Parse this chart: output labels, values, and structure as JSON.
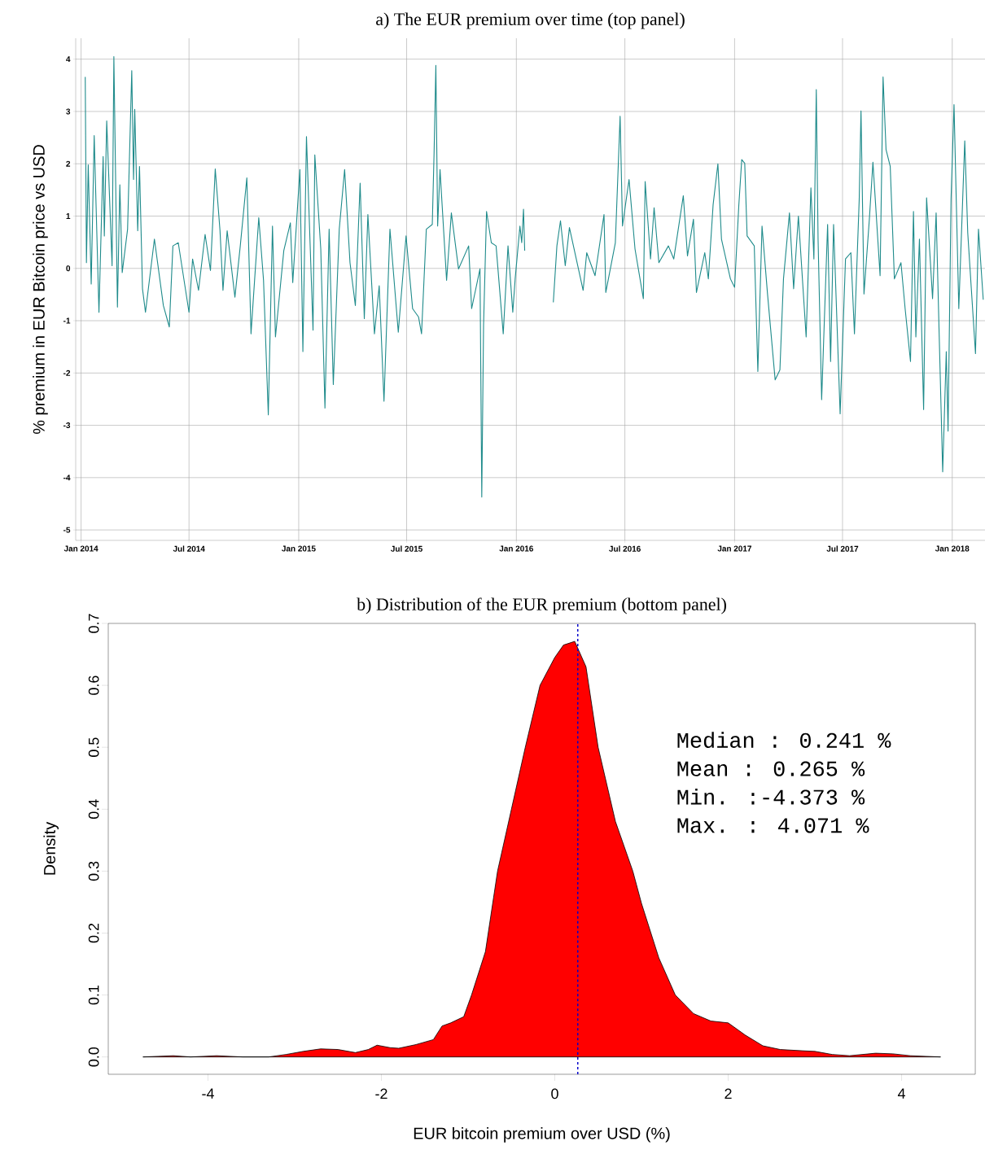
{
  "chart_data": [
    {
      "type": "line",
      "title": "a) The EUR premium over time (top panel)",
      "ylabel": "% premium in EUR Bitcoin price vs USD",
      "color": "#1f8b8b",
      "grid": true,
      "xlim": [
        "2013-12-23",
        "2018-02-25"
      ],
      "ylim": [
        -5.2,
        4.4
      ],
      "xticks": [
        {
          "value": "2014-01-01",
          "label": "Jan 2014"
        },
        {
          "value": "2014-07-01",
          "label": "Jul 2014"
        },
        {
          "value": "2015-01-01",
          "label": "Jan 2015"
        },
        {
          "value": "2015-07-01",
          "label": "Jul 2015"
        },
        {
          "value": "2016-01-01",
          "label": "Jan 2016"
        },
        {
          "value": "2016-07-01",
          "label": "Jul 2016"
        },
        {
          "value": "2017-01-01",
          "label": "Jan 2017"
        },
        {
          "value": "2017-07-01",
          "label": "Jul 2017"
        },
        {
          "value": "2018-01-01",
          "label": "Jan 2018"
        }
      ],
      "yticks": [
        -5,
        -4,
        -3,
        -2,
        -1,
        0,
        1,
        2,
        3,
        4
      ],
      "x": [
        "2014-01-08",
        "2014-01-10",
        "2014-01-13",
        "2014-01-18",
        "2014-01-23",
        "2014-01-31",
        "2014-02-07",
        "2014-02-09",
        "2014-02-13",
        "2014-02-22",
        "2014-02-25",
        "2014-03-03",
        "2014-03-07",
        "2014-03-11",
        "2014-03-20",
        "2014-03-27",
        "2014-03-30",
        "2014-04-01",
        "2014-04-06",
        "2014-04-09",
        "2014-04-14",
        "2014-04-19",
        "2014-05-04",
        "2014-05-19",
        "2014-05-29",
        "2014-06-04",
        "2014-06-13",
        "2014-07-01",
        "2014-07-07",
        "2014-07-17",
        "2014-07-28",
        "2014-08-06",
        "2014-08-14",
        "2014-08-22",
        "2014-08-27",
        "2014-09-03",
        "2014-09-16",
        "2014-09-25",
        "2014-10-06",
        "2014-10-13",
        "2014-10-26",
        "2014-11-03",
        "2014-11-11",
        "2014-11-18",
        "2014-11-23",
        "2014-12-07",
        "2014-12-18",
        "2014-12-22",
        "2015-01-03",
        "2015-01-08",
        "2015-01-14",
        "2015-01-25",
        "2015-01-28",
        "2015-02-07",
        "2015-02-14",
        "2015-02-21",
        "2015-02-28",
        "2015-03-10",
        "2015-03-19",
        "2015-03-28",
        "2015-04-06",
        "2015-04-14",
        "2015-04-21",
        "2015-04-27",
        "2015-05-08",
        "2015-05-16",
        "2015-05-24",
        "2015-06-03",
        "2015-06-17",
        "2015-06-30",
        "2015-07-11",
        "2015-07-21",
        "2015-07-26",
        "2015-08-03",
        "2015-08-13",
        "2015-08-16",
        "2015-08-19",
        "2015-08-22",
        "2015-08-26",
        "2015-09-06",
        "2015-09-14",
        "2015-09-26",
        "2015-10-13",
        "2015-10-18",
        "2015-11-01",
        "2015-11-04",
        "2015-11-07",
        "2015-11-12",
        "2015-11-20",
        "2015-11-28",
        "2015-12-10",
        "2015-12-18",
        "2015-12-26",
        "2015-12-30",
        "2016-01-07",
        "2016-01-10",
        "2016-01-13",
        "2016-01-15",
        "2016-02-05",
        "2016-03-03",
        "2016-03-09",
        "2016-03-15",
        "2016-03-23",
        "2016-03-30",
        "2016-04-22",
        "2016-04-28",
        "2016-05-12",
        "2016-05-27",
        "2016-05-30",
        "2016-06-15",
        "2016-06-23",
        "2016-06-27",
        "2016-07-08",
        "2016-07-18",
        "2016-08-01",
        "2016-08-04",
        "2016-08-13",
        "2016-08-19",
        "2016-08-27",
        "2016-09-12",
        "2016-09-21",
        "2016-10-07",
        "2016-10-14",
        "2016-10-24",
        "2016-10-29",
        "2016-11-12",
        "2016-11-18",
        "2016-11-26",
        "2016-12-04",
        "2016-12-10",
        "2016-12-25",
        "2017-01-01",
        "2017-01-08",
        "2017-01-13",
        "2017-01-18",
        "2017-01-22",
        "2017-02-03",
        "2017-02-09",
        "2017-02-16",
        "2017-02-25",
        "2017-03-10",
        "2017-03-18",
        "2017-03-24",
        "2017-04-03",
        "2017-04-10",
        "2017-04-18",
        "2017-05-01",
        "2017-05-09",
        "2017-05-14",
        "2017-05-18",
        "2017-05-21",
        "2017-05-27",
        "2017-06-06",
        "2017-06-11",
        "2017-06-16",
        "2017-06-27",
        "2017-07-06",
        "2017-07-15",
        "2017-07-21",
        "2017-07-29",
        "2017-08-01",
        "2017-08-06",
        "2017-08-15",
        "2017-08-21",
        "2017-09-02",
        "2017-09-07",
        "2017-09-12",
        "2017-09-19",
        "2017-09-26",
        "2017-10-07",
        "2017-10-14",
        "2017-10-23",
        "2017-10-28",
        "2017-11-01",
        "2017-11-07",
        "2017-11-14",
        "2017-11-19",
        "2017-11-29",
        "2017-12-05",
        "2017-12-10",
        "2017-12-16",
        "2017-12-22",
        "2017-12-25",
        "2017-12-30",
        "2018-01-04",
        "2018-01-12",
        "2018-01-22",
        "2018-01-27",
        "2018-02-02",
        "2018-02-09",
        "2018-02-14",
        "2018-02-22"
      ],
      "values": [
        3.66,
        0.11,
        1.98,
        -0.3,
        2.54,
        -0.84,
        2.14,
        0.62,
        2.82,
        0.05,
        4.05,
        -0.74,
        1.6,
        -0.08,
        0.75,
        3.78,
        1.7,
        3.04,
        0.72,
        1.95,
        -0.39,
        -0.84,
        0.56,
        -0.71,
        -1.12,
        0.43,
        0.49,
        -0.84,
        0.18,
        -0.42,
        0.65,
        -0.04,
        1.9,
        0.72,
        -0.42,
        0.72,
        -0.55,
        0.43,
        1.73,
        -1.25,
        0.97,
        -0.23,
        -2.8,
        0.81,
        -1.31,
        0.34,
        0.87,
        -0.27,
        1.89,
        -1.59,
        2.52,
        -1.18,
        2.17,
        0.37,
        -2.67,
        0.75,
        -2.22,
        0.75,
        1.89,
        0.11,
        -0.71,
        1.63,
        -0.96,
        1.03,
        -1.25,
        -0.33,
        -2.54,
        0.75,
        -1.22,
        0.62,
        -0.77,
        -0.93,
        -1.25,
        0.75,
        0.84,
        2.2,
        3.88,
        0.81,
        1.89,
        -0.23,
        1.06,
        -0.01,
        0.43,
        -0.77,
        -0.01,
        -4.37,
        -1.09,
        1.09,
        0.49,
        0.43,
        -1.25,
        0.43,
        -0.84,
        -0.2,
        0.81,
        0.49,
        1.13,
        0.34,
        null,
        -0.65,
        0.43,
        0.91,
        0.05,
        0.78,
        -0.42,
        0.3,
        -0.14,
        1.03,
        -0.46,
        0.49,
        2.91,
        0.81,
        1.7,
        0.37,
        -0.58,
        1.66,
        0.18,
        1.16,
        0.11,
        0.43,
        0.18,
        1.39,
        0.24,
        0.94,
        -0.46,
        0.3,
        -0.2,
        1.22,
        2.0,
        0.56,
        -0.2,
        -0.36,
        1.19,
        2.08,
        2.01,
        0.62,
        0.43,
        -1.97,
        0.81,
        -0.46,
        -2.13,
        -1.94,
        -0.2,
        1.06,
        -0.39,
        1.0,
        -1.31,
        1.54,
        0.18,
        3.42,
        0.56,
        -2.51,
        0.84,
        -1.78,
        0.84,
        -2.78,
        0.18,
        0.3,
        -1.25,
        1.32,
        3.01,
        -0.49,
        0.94,
        2.03,
        -0.14,
        3.66,
        2.27,
        1.95,
        -0.2,
        0.11,
        -0.77,
        -1.78,
        1.09,
        -1.31,
        0.56,
        -2.7,
        1.35,
        -0.58,
        1.06,
        -1.22,
        -3.89,
        -1.59,
        -3.11,
        1.32,
        3.13,
        -0.77,
        2.44,
        0.68,
        -0.39,
        -1.63,
        0.75,
        -0.6
      ]
    },
    {
      "type": "area",
      "title": "b) Distribution of the EUR premium (bottom panel)",
      "xlabel": "EUR bitcoin premium over USD (%)",
      "ylabel": "Density",
      "color": "#ff0000",
      "xlim": [
        -5.15,
        4.85
      ],
      "ylim": [
        -0.028,
        0.7
      ],
      "xticks": [
        -4,
        -2,
        0,
        2,
        4
      ],
      "yticks": [
        {
          "value": 0,
          "label": "0.0"
        },
        {
          "value": 0.1,
          "label": "0.1"
        },
        {
          "value": 0.2,
          "label": "0.2"
        },
        {
          "value": 0.3,
          "label": "0.3"
        },
        {
          "value": 0.4,
          "label": "0.4"
        },
        {
          "value": 0.5,
          "label": "0.5"
        },
        {
          "value": 0.6,
          "label": "0.6"
        },
        {
          "value": 0.7,
          "label": "0.7"
        }
      ],
      "x": [
        -4.75,
        -4.4,
        -4.2,
        -3.9,
        -3.6,
        -3.3,
        -3.1,
        -2.9,
        -2.7,
        -2.5,
        -2.3,
        -2.15,
        -2.05,
        -1.9,
        -1.8,
        -1.6,
        -1.4,
        -1.3,
        -1.2,
        -1.05,
        -0.96,
        -0.8,
        -0.66,
        -0.5,
        -0.34,
        -0.17,
        0,
        0.1,
        0.23,
        0.36,
        0.5,
        0.7,
        0.9,
        1.0,
        1.2,
        1.39,
        1.6,
        1.8,
        2.0,
        2.2,
        2.4,
        2.6,
        2.85,
        3.0,
        3.2,
        3.4,
        3.7,
        3.9,
        4.1,
        4.45
      ],
      "values": [
        0,
        0.002,
        0,
        0.002,
        0,
        0,
        0.004,
        0.009,
        0.013,
        0.012,
        0.007,
        0.012,
        0.019,
        0.015,
        0.014,
        0.02,
        0.028,
        0.05,
        0.055,
        0.065,
        0.1,
        0.17,
        0.3,
        0.4,
        0.5,
        0.6,
        0.645,
        0.665,
        0.671,
        0.63,
        0.5,
        0.38,
        0.3,
        0.248,
        0.16,
        0.1,
        0.07,
        0.058,
        0.055,
        0.035,
        0.018,
        0.012,
        0.01,
        0.009,
        0.004,
        0.002,
        0.006,
        0.005,
        0.002,
        0
      ],
      "ref_lines": [
        {
          "axis": "x",
          "value": 0.265,
          "color": "#0000cc",
          "line_style": "dashed"
        }
      ],
      "annotations": [
        "Median : 0.241 %",
        "Mean : 0.265 %",
        "Min. :-4.373 %",
        "Max. : 4.071 %"
      ]
    }
  ]
}
